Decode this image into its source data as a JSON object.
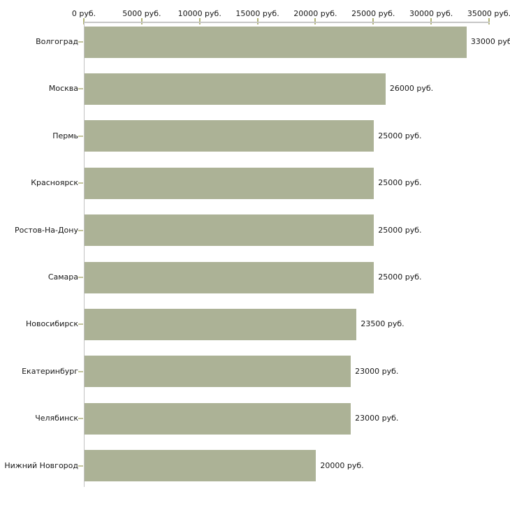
{
  "chart_data": {
    "type": "bar",
    "orientation": "horizontal",
    "title": "",
    "categories": [
      "Волгоград",
      "Москва",
      "Пермь",
      "Красноярск",
      "Ростов-На-Дону",
      "Самара",
      "Новосибирск",
      "Екатеринбург",
      "Челябинск",
      "Нижний Новгород"
    ],
    "values": [
      33000,
      26000,
      25000,
      25000,
      25000,
      25000,
      23500,
      23000,
      23000,
      20000
    ],
    "value_labels": [
      "33000 руб",
      "26000 руб.",
      "25000 руб.",
      "25000 руб.",
      "25000 руб.",
      "25000 руб.",
      "23500 руб.",
      "23000 руб.",
      "23000 руб.",
      "20000 руб."
    ],
    "x_axis": {
      "position": "top",
      "min": 0,
      "max": 35000,
      "tick_values": [
        0,
        5000,
        10000,
        15000,
        20000,
        25000,
        30000,
        35000
      ],
      "tick_labels": [
        "0 руб.",
        "5000 руб.",
        "10000 руб.",
        "15000 руб.",
        "20000 руб.",
        "25000 руб.",
        "30000 руб.",
        "35000 руб."
      ]
    },
    "grid": false,
    "legend": false,
    "colors": {
      "bar": "#acb296",
      "axis_line": "#c6c6c6",
      "x_tick": "#b2b478",
      "y_tick": "#c3c49c",
      "text": "#161616",
      "background": "#ffffff"
    }
  }
}
